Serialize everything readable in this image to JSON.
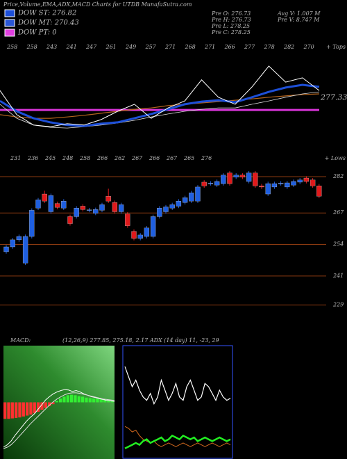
{
  "title": "Price,Volume,EMA,ADX,MACD Charts for UTDB MunafaSutra.com",
  "legend": [
    {
      "label": "DOW ST: 276.82",
      "color": "#1d4fd8"
    },
    {
      "label": "DOW MT: 270.43",
      "color": "#2b57d6"
    },
    {
      "label": "DOW PT: 0",
      "color": "#e040e0"
    }
  ],
  "info": [
    "Pre  O: 276.73",
    "Pre  H: 276.73",
    "Pre  L: 278.25",
    "Pre  C: 278.25",
    "Avg  V: 1.007 M",
    "Pre  V: 8.747 M"
  ],
  "chart_data": [
    {
      "type": "line",
      "ylim": [
        265,
        292
      ],
      "tops": [
        258,
        258,
        243,
        241,
        247,
        261,
        249,
        257,
        271,
        268,
        271,
        266,
        277,
        278,
        282,
        270
      ],
      "tops_label": "+ Tops",
      "lows": [
        231,
        236,
        245,
        248,
        258,
        266,
        262,
        267,
        266,
        267,
        265,
        276
      ],
      "lows_label": "+ Lows",
      "last_value": 277.33,
      "hline": {
        "value": 273.7,
        "color": "#d633d6"
      },
      "series": [
        {
          "color": "#b5651d",
          "width": 1.2,
          "values": [
            272.3,
            271.6,
            271.2,
            271.2,
            271.6,
            272.1,
            272.7,
            273.3,
            273.9,
            274.3,
            275.0,
            275.4,
            275.8,
            276.2,
            276.6,
            277.0,
            277.5,
            277.9,
            278.3,
            278.5
          ]
        },
        {
          "color": "#dddddd",
          "width": 0.8,
          "values": [
            275.4,
            271.2,
            269.2,
            268.5,
            268.3,
            268.7,
            269.2,
            269.8,
            270.6,
            271.6,
            272.5,
            273.3,
            273.9,
            274.3,
            274.3,
            275.4,
            276.4,
            277.5,
            278.5,
            279.1
          ]
        },
        {
          "color": "#1d4fd8",
          "width": 3,
          "values": [
            276.4,
            273.3,
            271.2,
            270.0,
            269.2,
            268.9,
            269.6,
            270.0,
            271.2,
            272.5,
            273.9,
            275.4,
            276.2,
            276.6,
            276.0,
            277.5,
            279.1,
            280.4,
            281.2,
            280.6
          ]
        },
        {
          "color": "#ffffff",
          "width": 1,
          "values": [
            279.5,
            272.3,
            269.2,
            268.7,
            269.6,
            269.2,
            270.8,
            273.3,
            275.4,
            271.2,
            274.3,
            276.4,
            282.7,
            277.5,
            275.4,
            280.6,
            286.8,
            282.0,
            283.3,
            279.5
          ]
        }
      ]
    },
    {
      "type": "candlestick",
      "ylim": [
        220,
        286
      ],
      "yticks": [
        282,
        267,
        254,
        241,
        229
      ],
      "up_color": "#1f5fe0",
      "down_color": "#e0191b",
      "grid_color": "#8b3a10",
      "open": [
        251,
        253,
        255.9,
        246.3,
        257.3,
        269,
        274.8,
        267.5,
        270.9,
        269,
        265.5,
        265.5,
        269.8,
        268.1,
        266.9,
        268.1,
        273.9,
        271.3,
        267.5,
        266.6,
        259.4,
        256.5,
        257.3,
        257.3,
        265.5,
        267.5,
        269,
        269.8,
        271.3,
        271.9,
        271.9,
        279.7,
        279.1,
        278.5,
        279.1,
        283.5,
        281.8,
        282.6,
        280,
        283.5,
        278.2,
        274.8,
        277.7,
        279.1,
        277.7,
        278.5,
        279.7,
        281.4,
        280.6,
        278.2
      ],
      "close": [
        253,
        255.9,
        257.3,
        257.3,
        268.1,
        272.4,
        271.9,
        274.2,
        269.3,
        271.9,
        262.6,
        269,
        268.4,
        268.3,
        268.4,
        270.4,
        271.9,
        267.5,
        270.4,
        261.7,
        256.5,
        257.9,
        260.8,
        265.5,
        269,
        269.5,
        270.4,
        271.9,
        273.3,
        275.3,
        277.7,
        278.2,
        279.3,
        280,
        282.6,
        279.1,
        282.6,
        281.8,
        283.5,
        278.2,
        277.7,
        279.1,
        279.1,
        279.3,
        279.4,
        280,
        280.6,
        280,
        278.2,
        273.9
      ],
      "high": [
        253.8,
        256.7,
        258.1,
        258.1,
        268.9,
        273.2,
        276.2,
        275,
        271.7,
        272.7,
        266.3,
        269.8,
        270.6,
        269.1,
        269.2,
        271.2,
        277,
        272.1,
        271.2,
        267.4,
        260.2,
        258.7,
        261.6,
        266.3,
        269.8,
        270.3,
        271.2,
        272.7,
        274.1,
        276.1,
        278.5,
        280.5,
        280.1,
        280.8,
        283.4,
        284.3,
        283.4,
        283.4,
        284.3,
        284.3,
        279,
        279.9,
        279.9,
        280.1,
        280.2,
        280.8,
        281.4,
        282.2,
        281.4,
        279
      ],
      "low": [
        250.2,
        252.2,
        255.1,
        245.5,
        256.5,
        268.2,
        271.1,
        266.7,
        268.5,
        268.2,
        261.8,
        264.7,
        267.6,
        267.3,
        266.1,
        267.3,
        271.1,
        266.7,
        266.7,
        260.9,
        255.7,
        255.7,
        256.5,
        256.5,
        264.7,
        266.7,
        268.2,
        269,
        270.5,
        271.1,
        271.1,
        277.4,
        278.3,
        277.7,
        278.3,
        278.3,
        281,
        281,
        279.2,
        277.4,
        276.9,
        274,
        276.9,
        278.3,
        276.9,
        277.7,
        278.9,
        279.2,
        277.4,
        273.1
      ]
    },
    {
      "type": "macd",
      "label": "MACD:",
      "params": "(12,26,9) 277.85, 275.18, 2.17 ADX (14 day) 11, -23, 29",
      "ylim": [
        -12,
        12
      ],
      "hist_pos_color": "#33ee33",
      "hist_neg_color": "#ff3030",
      "histogram": [
        -3.5,
        -3.5,
        -3.4,
        -3.3,
        -3.2,
        -3,
        -2.8,
        -2.6,
        -2.3,
        -2,
        -1.6,
        -1.2,
        -0.8,
        -0.4,
        0.3,
        0.8,
        1.2,
        1.5,
        1.6,
        1.5,
        1.3,
        1.2,
        1.0,
        0.9,
        0.8,
        0.8,
        0.7,
        0.6,
        0.5,
        0.3
      ],
      "series": [
        {
          "color": "#ffffff",
          "values": [
            -9.5,
            -9,
            -8.2,
            -7,
            -6,
            -5,
            -4,
            -3.2,
            -2.5,
            -1.5,
            -0.5,
            0.5,
            1.2,
            1.8,
            2.2,
            2.5,
            2.7,
            2.6,
            2.3,
            2.5,
            2.2,
            1.8,
            1.5,
            1.2,
            1.0,
            0.8,
            0.6,
            0.4,
            0.3,
            0.2
          ]
        },
        {
          "color": "#dddddd",
          "values": [
            -9.8,
            -9.5,
            -9,
            -8.2,
            -7.3,
            -6.4,
            -5.5,
            -4.6,
            -3.8,
            -3,
            -2.2,
            -1.4,
            -0.6,
            0.1,
            0.7,
            1.2,
            1.6,
            1.9,
            2.0,
            2.0,
            1.9,
            1.7,
            1.5,
            1.3,
            1.1,
            0.9,
            0.7,
            0.6,
            0.5,
            0.4
          ]
        }
      ]
    },
    {
      "type": "adx",
      "ylim": [
        0,
        60
      ],
      "series": [
        {
          "color": "#ffffff",
          "width": 1.2,
          "values": [
            49.7,
            44.2,
            38.7,
            42.3,
            36.8,
            33.1,
            31.3,
            35.0,
            29.4,
            33.1,
            42.3,
            36.8,
            31.3,
            35.0,
            40.5,
            33.1,
            31.3,
            38.7,
            42.3,
            36.8,
            31.3,
            33.1,
            40.5,
            38.7,
            35.0,
            31.3,
            36.8,
            33.1,
            31.3,
            32.4
          ]
        },
        {
          "color": "#d2691e",
          "width": 1,
          "values": [
            17,
            16,
            14,
            15,
            12,
            10,
            9,
            8,
            9,
            7,
            6,
            7,
            8,
            7,
            6,
            7,
            8,
            7,
            6,
            7,
            8,
            7,
            6,
            7,
            8,
            7,
            6,
            7,
            8,
            7
          ]
        },
        {
          "color": "#22ee22",
          "width": 2.5,
          "values": [
            5,
            6,
            7,
            8,
            7,
            9,
            10,
            8,
            9,
            10,
            11,
            9,
            10,
            12,
            11,
            10,
            12,
            11,
            10,
            11,
            9,
            10,
            11,
            10,
            9,
            10,
            11,
            10,
            9,
            10
          ]
        }
      ]
    }
  ]
}
